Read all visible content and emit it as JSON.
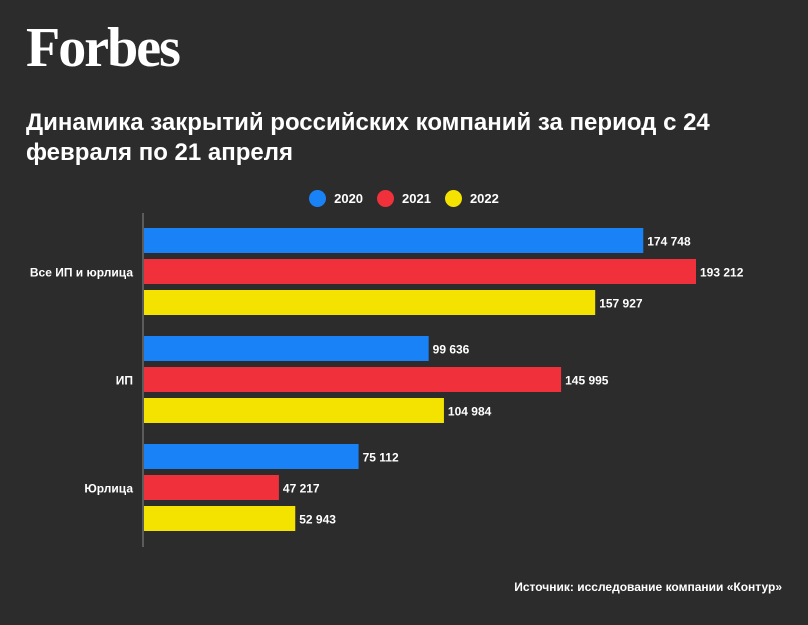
{
  "brand": {
    "logo_text": "Forbes"
  },
  "header": {
    "title": "Динамика закрытий российских компаний за период с 24 февраля по 21 апреля"
  },
  "colors": {
    "2020": "#1a82f7",
    "2021": "#f0313c",
    "2022": "#f4e300",
    "background": "#2c2c2c",
    "text": "#ffffff",
    "axis": "#8a8a8a"
  },
  "legend": [
    {
      "label": "2020",
      "color": "#1a82f7"
    },
    {
      "label": "2021",
      "color": "#f0313c"
    },
    {
      "label": "2022",
      "color": "#f4e300"
    }
  ],
  "chart_data": {
    "type": "bar",
    "orientation": "horizontal",
    "title": "Динамика закрытий российских компаний за период с 24 февраля по 21 апреля",
    "categories": [
      "Все ИП и юрлица",
      "ИП",
      "Юрлица"
    ],
    "series": [
      {
        "name": "2020",
        "color": "#1a82f7",
        "values": [
          174748,
          99636,
          75112
        ],
        "labels": [
          "174 748",
          "99 636",
          "75 112"
        ]
      },
      {
        "name": "2021",
        "color": "#f0313c",
        "values": [
          193212,
          145995,
          47217
        ],
        "labels": [
          "193 212",
          "145 995",
          "47 217"
        ]
      },
      {
        "name": "2022",
        "color": "#f4e300",
        "values": [
          157927,
          104984,
          52943
        ],
        "labels": [
          "157 927",
          "104 984",
          "52 943"
        ]
      }
    ],
    "xlim": [
      0,
      193212
    ],
    "legend_position": "top-center",
    "grid": false
  },
  "footer": {
    "source": "Источник: исследование компании «Контур»"
  }
}
